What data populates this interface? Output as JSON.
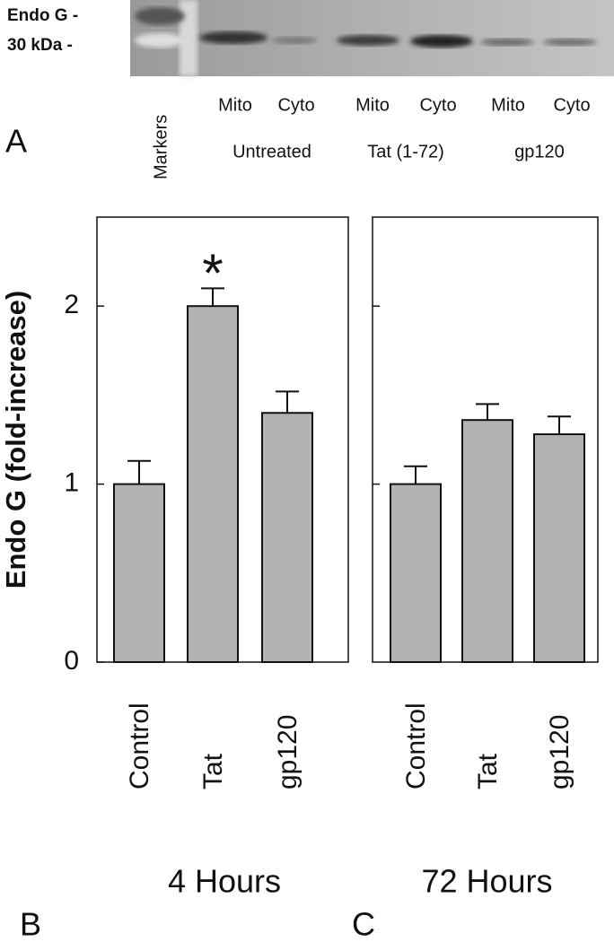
{
  "blot": {
    "markers": [
      "Endo G -",
      "30 kDa -"
    ],
    "marker_lane": "Markers",
    "lanes": [
      "Mito",
      "Cyto",
      "Mito",
      "Cyto",
      "Mito",
      "Cyto"
    ],
    "groups": [
      "Untreated",
      "Tat (1-72)",
      "gp120"
    ],
    "panel": "A"
  },
  "chart_data": [
    {
      "type": "bar",
      "panel": "B",
      "subtitle": "4 Hours",
      "ylabel": "Endo G (fold-increase)",
      "categories": [
        "Control",
        "Tat",
        "gp120"
      ],
      "values": [
        1.0,
        2.0,
        1.4
      ],
      "errors": [
        0.13,
        0.1,
        0.12
      ],
      "color": "#b3b3b3",
      "ylim": [
        0,
        2.5
      ],
      "yticks": [
        0,
        1,
        2
      ],
      "annotation": "*"
    },
    {
      "type": "bar",
      "panel": "C",
      "subtitle": "72 Hours",
      "categories": [
        "Control",
        "Tat",
        "gp120"
      ],
      "values": [
        1.0,
        1.36,
        1.28
      ],
      "errors": [
        0.1,
        0.09,
        0.1
      ],
      "color": "#b3b3b3",
      "ylim": [
        0,
        2.5
      ],
      "yticks": [
        1,
        2
      ]
    }
  ]
}
